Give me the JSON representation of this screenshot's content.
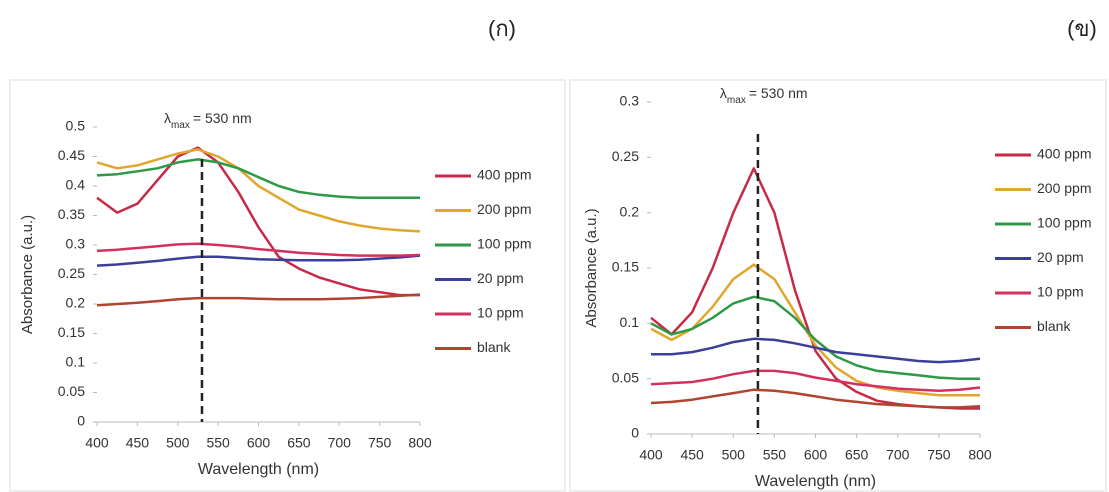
{
  "chart_data": [
    {
      "type": "line",
      "title": "(ก)",
      "x_label": "Wavelength (nm)",
      "y_label": "Absorbance (a.u.)",
      "annotation": {
        "symbol": "λ",
        "subscript": "max",
        "text": "= 530 nm",
        "x": 530
      },
      "x": [
        400,
        425,
        450,
        475,
        500,
        525,
        550,
        575,
        600,
        625,
        650,
        675,
        700,
        725,
        750,
        775,
        800
      ],
      "xlim": [
        400,
        800
      ],
      "xticks": [
        400,
        450,
        500,
        550,
        600,
        650,
        700,
        750,
        800
      ],
      "ylim": [
        0,
        0.5
      ],
      "yticks": [
        0,
        0.05,
        0.1,
        0.15,
        0.2,
        0.25,
        0.3,
        0.35,
        0.4,
        0.45,
        0.5
      ],
      "legend": "right",
      "series": [
        {
          "name": "400 ppm",
          "color": "#c72a48",
          "values": [
            0.38,
            0.355,
            0.37,
            0.41,
            0.45,
            0.465,
            0.44,
            0.39,
            0.33,
            0.28,
            0.26,
            0.245,
            0.235,
            0.225,
            0.22,
            0.215,
            0.215
          ]
        },
        {
          "name": "200 ppm",
          "color": "#e1a62e",
          "values": [
            0.44,
            0.43,
            0.435,
            0.445,
            0.455,
            0.462,
            0.45,
            0.43,
            0.4,
            0.38,
            0.36,
            0.35,
            0.34,
            0.333,
            0.328,
            0.325,
            0.323
          ]
        },
        {
          "name": "100 ppm",
          "color": "#2e9a47",
          "values": [
            0.418,
            0.42,
            0.425,
            0.43,
            0.44,
            0.445,
            0.44,
            0.43,
            0.415,
            0.4,
            0.39,
            0.385,
            0.382,
            0.38,
            0.38,
            0.38,
            0.38
          ]
        },
        {
          "name": "20 ppm",
          "color": "#3b3f9a",
          "values": [
            0.265,
            0.267,
            0.27,
            0.273,
            0.277,
            0.28,
            0.28,
            0.278,
            0.276,
            0.275,
            0.274,
            0.274,
            0.274,
            0.275,
            0.277,
            0.279,
            0.282
          ]
        },
        {
          "name": "10 ppm",
          "color": "#d2315e",
          "values": [
            0.29,
            0.292,
            0.295,
            0.298,
            0.301,
            0.302,
            0.3,
            0.297,
            0.293,
            0.29,
            0.287,
            0.285,
            0.283,
            0.282,
            0.282,
            0.282,
            0.283
          ]
        },
        {
          "name": "blank",
          "color": "#b0452f",
          "values": [
            0.198,
            0.2,
            0.202,
            0.205,
            0.208,
            0.21,
            0.21,
            0.21,
            0.209,
            0.208,
            0.208,
            0.208,
            0.209,
            0.21,
            0.212,
            0.214,
            0.216
          ]
        }
      ]
    },
    {
      "type": "line",
      "title": "(ข)",
      "x_label": "Wavelength (nm)",
      "y_label": "Absorbance (a.u.)",
      "annotation": {
        "symbol": "λ",
        "subscript": "max",
        "text": "= 530 nm",
        "x": 530
      },
      "x": [
        400,
        425,
        450,
        475,
        500,
        525,
        550,
        575,
        600,
        625,
        650,
        675,
        700,
        725,
        750,
        775,
        800
      ],
      "xlim": [
        400,
        800
      ],
      "xticks": [
        400,
        450,
        500,
        550,
        600,
        650,
        700,
        750,
        800
      ],
      "ylim": [
        0,
        0.3
      ],
      "yticks": [
        0,
        0.05,
        0.1,
        0.15,
        0.2,
        0.25,
        0.3
      ],
      "legend": "right",
      "series": [
        {
          "name": "400 ppm",
          "color": "#c72a48",
          "values": [
            0.105,
            0.09,
            0.11,
            0.15,
            0.2,
            0.24,
            0.2,
            0.13,
            0.075,
            0.05,
            0.038,
            0.03,
            0.027,
            0.025,
            0.024,
            0.023,
            0.023
          ]
        },
        {
          "name": "200 ppm",
          "color": "#e1a62e",
          "values": [
            0.095,
            0.085,
            0.095,
            0.115,
            0.14,
            0.153,
            0.14,
            0.11,
            0.08,
            0.06,
            0.048,
            0.042,
            0.039,
            0.037,
            0.035,
            0.035,
            0.035
          ]
        },
        {
          "name": "100 ppm",
          "color": "#2e9a47",
          "values": [
            0.1,
            0.09,
            0.095,
            0.105,
            0.118,
            0.124,
            0.12,
            0.105,
            0.085,
            0.07,
            0.062,
            0.057,
            0.055,
            0.053,
            0.051,
            0.05,
            0.05
          ]
        },
        {
          "name": "20 ppm",
          "color": "#3b3f9a",
          "values": [
            0.072,
            0.072,
            0.074,
            0.078,
            0.083,
            0.086,
            0.085,
            0.082,
            0.078,
            0.074,
            0.072,
            0.07,
            0.068,
            0.066,
            0.065,
            0.066,
            0.068
          ]
        },
        {
          "name": "10 ppm",
          "color": "#d2315e",
          "values": [
            0.045,
            0.046,
            0.047,
            0.05,
            0.054,
            0.057,
            0.057,
            0.055,
            0.051,
            0.048,
            0.045,
            0.043,
            0.041,
            0.04,
            0.039,
            0.04,
            0.042
          ]
        },
        {
          "name": "blank",
          "color": "#b0452f",
          "values": [
            0.028,
            0.029,
            0.031,
            0.034,
            0.037,
            0.04,
            0.039,
            0.037,
            0.034,
            0.031,
            0.029,
            0.027,
            0.026,
            0.025,
            0.024,
            0.024,
            0.025
          ]
        }
      ]
    }
  ]
}
